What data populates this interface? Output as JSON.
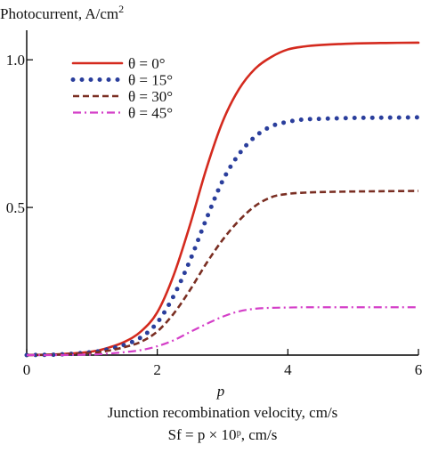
{
  "chart_data": {
    "type": "line",
    "ylabel": "Photocurrent, A/cm",
    "ylabel_sup": "2",
    "xlabel_var": "p",
    "xlabel_line1": "Junction recombination velocity, cm/s",
    "xlabel_line2": "Sf = p × 10ᵖ, cm/s",
    "xlim": [
      0,
      6
    ],
    "ylim": [
      0,
      1.1
    ],
    "x_ticks": [
      0,
      2,
      4,
      6
    ],
    "x_tick_labels": [
      "0",
      "2",
      "4",
      "6"
    ],
    "y_ticks": [
      0.5,
      1.0
    ],
    "y_tick_labels": [
      "0.5",
      "1.0"
    ],
    "grid": false,
    "legend_position": "top-left",
    "x": [
      0,
      0.5,
      1.0,
      1.25,
      1.5,
      1.75,
      2.0,
      2.25,
      2.5,
      2.75,
      3.0,
      3.25,
      3.5,
      3.75,
      4.0,
      4.25,
      4.5,
      5.0,
      5.5,
      6.0
    ],
    "series": [
      {
        "name": "θ = 0°",
        "color": "#d42a1e",
        "style": "solid",
        "values": [
          0,
          0.003,
          0.012,
          0.025,
          0.045,
          0.08,
          0.145,
          0.27,
          0.44,
          0.63,
          0.79,
          0.9,
          0.97,
          1.01,
          1.035,
          1.045,
          1.05,
          1.055,
          1.057,
          1.058
        ]
      },
      {
        "name": "θ = 15°",
        "color": "#2a3e9c",
        "style": "dotted",
        "values": [
          0,
          0.002,
          0.01,
          0.02,
          0.035,
          0.06,
          0.11,
          0.2,
          0.32,
          0.46,
          0.59,
          0.68,
          0.74,
          0.775,
          0.79,
          0.798,
          0.8,
          0.803,
          0.804,
          0.805
        ]
      },
      {
        "name": "θ = 30°",
        "color": "#7a2e22",
        "style": "dashed",
        "values": [
          0,
          0.002,
          0.008,
          0.015,
          0.027,
          0.045,
          0.08,
          0.14,
          0.22,
          0.31,
          0.39,
          0.455,
          0.505,
          0.535,
          0.546,
          0.55,
          0.552,
          0.554,
          0.555,
          0.556
        ]
      },
      {
        "name": "θ = 45°",
        "color": "#d43fc8",
        "style": "dashdot",
        "values": [
          0,
          0,
          0.002,
          0.005,
          0.01,
          0.017,
          0.03,
          0.05,
          0.078,
          0.105,
          0.13,
          0.148,
          0.157,
          0.16,
          0.161,
          0.162,
          0.162,
          0.162,
          0.162,
          0.162
        ]
      }
    ]
  }
}
